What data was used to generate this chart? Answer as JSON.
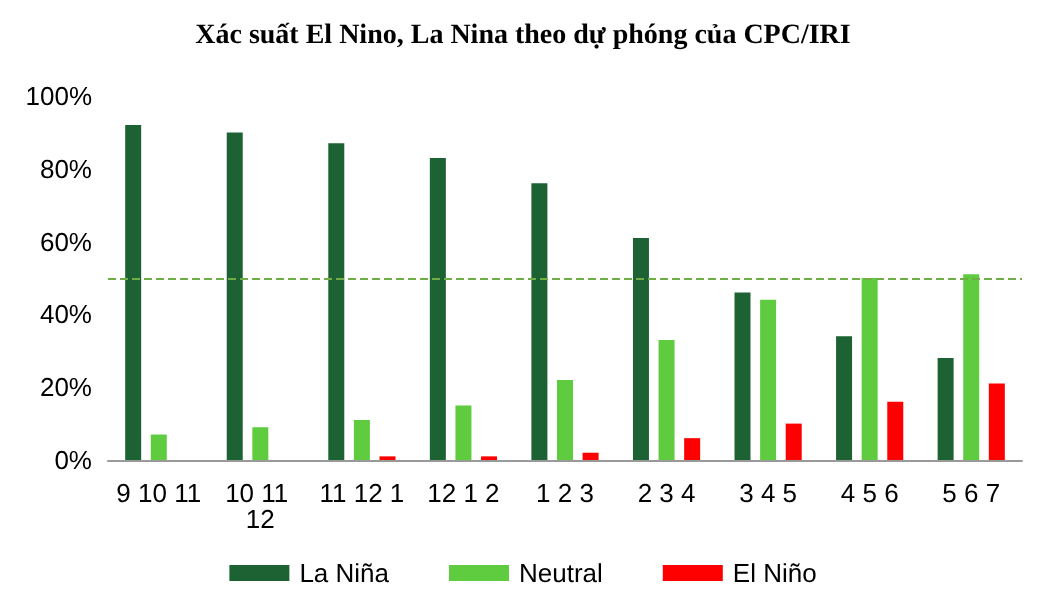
{
  "chart_data": {
    "type": "bar",
    "title": "Xác suất El Nino, La Nina theo dự phóng của CPC/IRI",
    "categories": [
      "9 10 11",
      "10 11 12",
      "11 12 1",
      "12 1 2",
      "1 2 3",
      "2 3 4",
      "3 4 5",
      "4 5 6",
      "5 6 7"
    ],
    "series": [
      {
        "name": "La Niña",
        "color": "#1d6232",
        "values": [
          92,
          90,
          87,
          83,
          76,
          61,
          46,
          34,
          28
        ]
      },
      {
        "name": "Neutral",
        "color": "#5fcc3f",
        "values": [
          7,
          9,
          11,
          15,
          22,
          33,
          44,
          50,
          51
        ]
      },
      {
        "name": "El Niño",
        "color": "#ff0000",
        "values": [
          0,
          0,
          1,
          1,
          2,
          6,
          10,
          16,
          21
        ]
      }
    ],
    "ylim": [
      0,
      100
    ],
    "yticks": [
      {
        "value": 0,
        "label": "0%"
      },
      {
        "value": 20,
        "label": "20%"
      },
      {
        "value": 40,
        "label": "40%"
      },
      {
        "value": 60,
        "label": "60%"
      },
      {
        "value": 80,
        "label": "80%"
      },
      {
        "value": 100,
        "label": "100%"
      }
    ],
    "ref_lines": [
      {
        "axis": "y",
        "value": 50,
        "color": "#70ad47",
        "line_style": "dashed"
      }
    ],
    "grid": false,
    "legend": "bottom"
  }
}
